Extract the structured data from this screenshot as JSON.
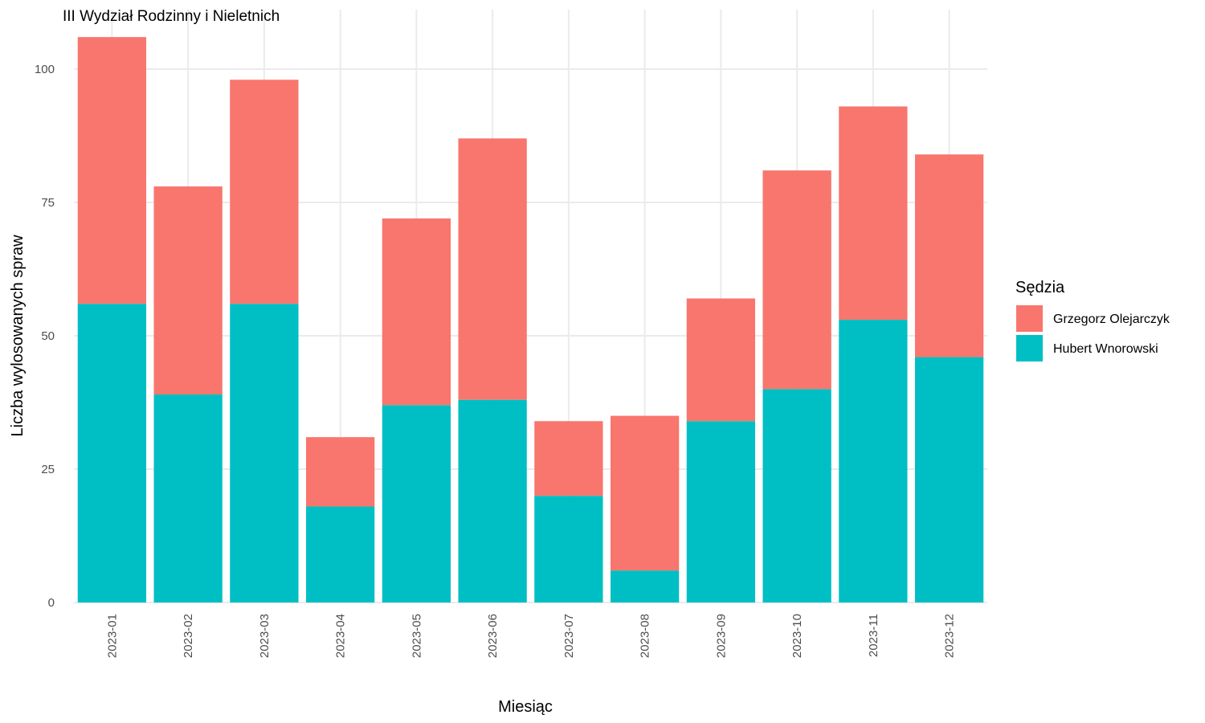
{
  "chart_data": {
    "type": "bar",
    "stacked": true,
    "title": "III Wydział Rodzinny i Nieletnich",
    "xlabel": "Miesiąc",
    "ylabel": "Liczba wylosowanych spraw",
    "ylim": [
      0,
      107
    ],
    "yticks": [
      0,
      25,
      50,
      75,
      100
    ],
    "grid": true,
    "legend_title": "Sędzia",
    "legend_position": "right",
    "categories": [
      "2023-01",
      "2023-02",
      "2023-03",
      "2023-04",
      "2023-05",
      "2023-06",
      "2023-07",
      "2023-08",
      "2023-09",
      "2023-10",
      "2023-11",
      "2023-12"
    ],
    "series": [
      {
        "name": "Hubert Wnorowski",
        "color": "#00BFC4",
        "values": [
          56,
          39,
          56,
          18,
          37,
          38,
          20,
          6,
          34,
          40,
          53,
          46
        ]
      },
      {
        "name": "Grzegorz Olejarczyk",
        "color": "#F8766D",
        "values": [
          50,
          39,
          42,
          13,
          35,
          49,
          14,
          29,
          23,
          41,
          40,
          38
        ]
      }
    ],
    "legend_order": [
      1,
      0
    ]
  }
}
